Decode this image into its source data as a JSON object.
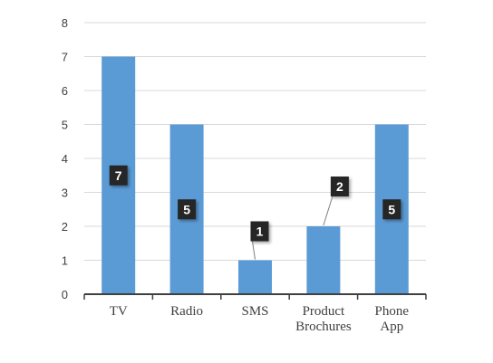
{
  "chart_data": {
    "type": "bar",
    "categories": [
      [
        "TV"
      ],
      [
        "Radio"
      ],
      [
        "SMS"
      ],
      [
        "Product",
        "Brochures"
      ],
      [
        "Phone",
        "App"
      ]
    ],
    "values": [
      7,
      5,
      1,
      2,
      5
    ],
    "data_labels": [
      "7",
      "5",
      "1",
      "2",
      "5"
    ],
    "ylim": [
      0,
      8
    ],
    "yticks": [
      0,
      1,
      2,
      3,
      4,
      5,
      6,
      7,
      8
    ],
    "grid": true,
    "legend": "none",
    "title": "",
    "xlabel": "",
    "ylabel": "",
    "colors": {
      "bar": "#5b9bd5",
      "gridline": "#d9d9d9",
      "axis": "#404040",
      "label_box": "#262626",
      "label_text": "#ffffff"
    }
  }
}
